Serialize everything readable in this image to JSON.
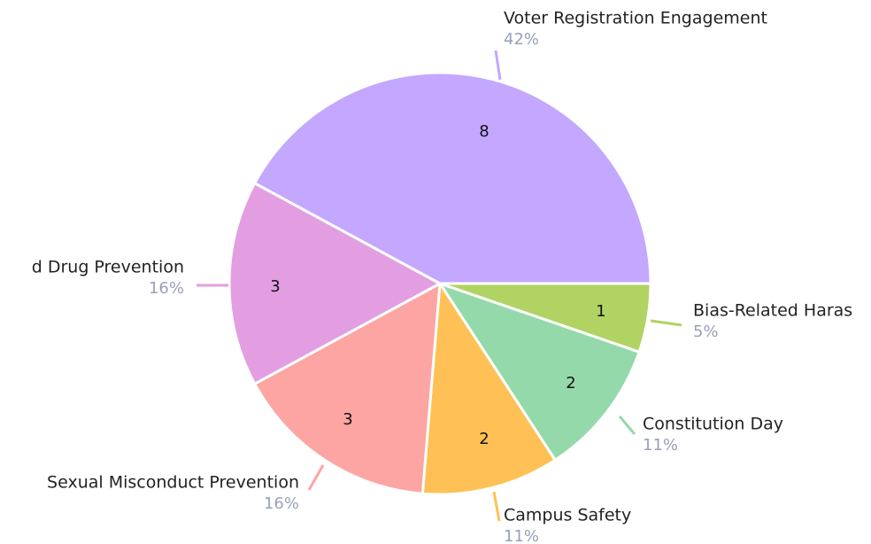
{
  "chart_data": {
    "type": "pie",
    "categories": [
      "Bias-Related Haras",
      "Constitution Day",
      "Campus Safety",
      "Sexual Misconduct Prevention",
      "d Drug Prevention",
      "Voter Registration Engagement"
    ],
    "values": [
      1,
      2,
      2,
      3,
      3,
      8
    ],
    "percent_labels": [
      "5%",
      "11%",
      "11%",
      "16%",
      "16%",
      "42%"
    ],
    "colors": [
      "#b0d364",
      "#94d9aa",
      "#ffc155",
      "#fca5a3",
      "#e39ee2",
      "#c4a7fe"
    ]
  }
}
